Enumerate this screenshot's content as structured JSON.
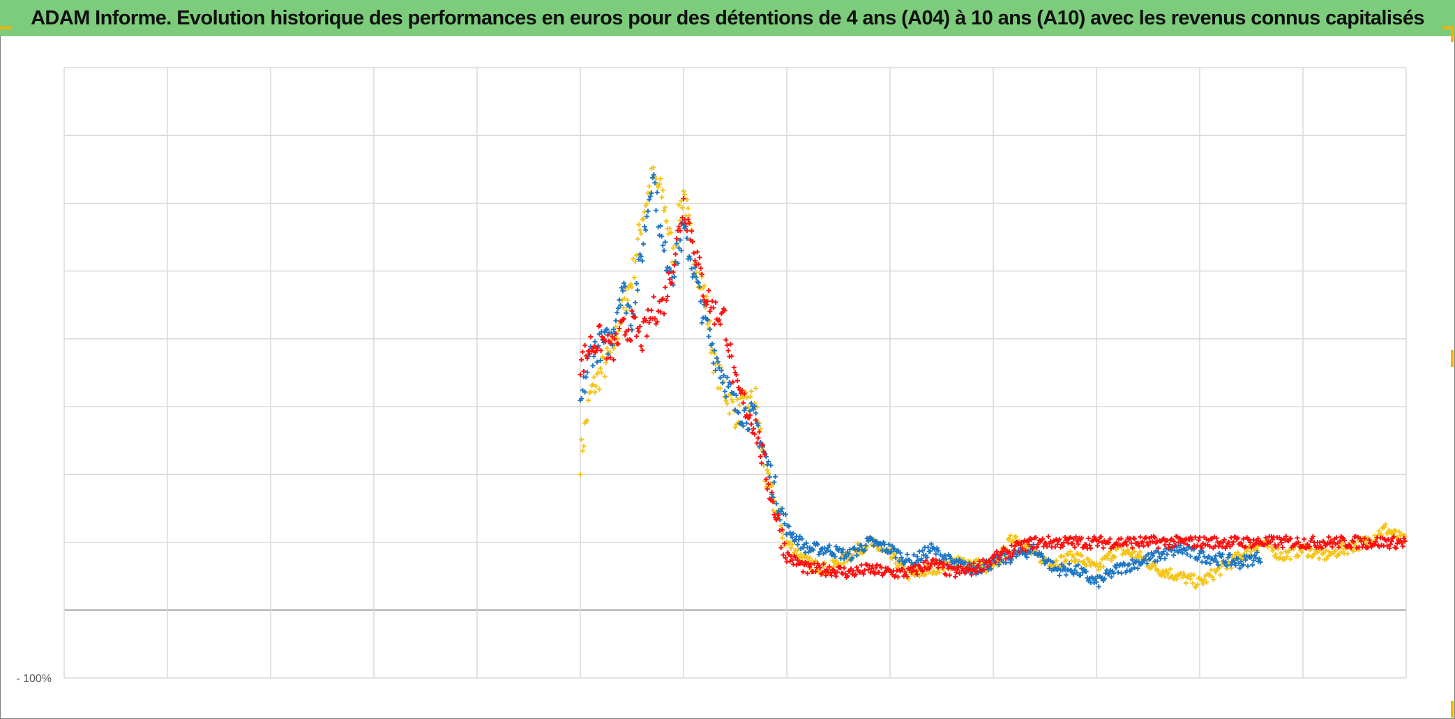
{
  "chart_data": {
    "type": "scatter",
    "title": "ADAM Informe. Evolution historique des performances en euros pour des détentions de 4 ans (A04) à 10 ans (A10) avec les revenus connus capitalisés",
    "y_tick_label_bottom": "- 100%",
    "xlabel": "",
    "ylabel": "",
    "grid": true,
    "legend": "none",
    "marker": "+",
    "x_range": [
      0,
      13
    ],
    "y_range": [
      -100,
      800
    ],
    "y_gridlines": [
      -100,
      0,
      100,
      200,
      300,
      400,
      500,
      600,
      700,
      800
    ],
    "baseline_y": 0,
    "series": [
      {
        "color": "#f5c518",
        "points": [
          [
            5.0,
            222
          ],
          [
            5.1,
            320
          ],
          [
            5.3,
            380
          ],
          [
            5.5,
            490
          ],
          [
            5.6,
            580
          ],
          [
            5.7,
            640
          ],
          [
            5.8,
            610
          ],
          [
            5.9,
            520
          ],
          [
            6.0,
            620
          ],
          [
            6.1,
            520
          ],
          [
            6.2,
            470
          ],
          [
            6.3,
            360
          ],
          [
            6.5,
            290
          ],
          [
            6.7,
            310
          ],
          [
            6.8,
            190
          ],
          [
            7.0,
            100
          ],
          [
            7.2,
            70
          ],
          [
            7.4,
            60
          ],
          [
            7.6,
            80
          ],
          [
            7.8,
            100
          ],
          [
            8.0,
            80
          ],
          [
            8.2,
            50
          ],
          [
            8.4,
            60
          ],
          [
            8.6,
            70
          ],
          [
            8.8,
            70
          ],
          [
            9.0,
            60
          ],
          [
            9.2,
            110
          ],
          [
            9.4,
            80
          ],
          [
            9.6,
            70
          ],
          [
            9.8,
            80
          ],
          [
            10.0,
            60
          ],
          [
            10.2,
            90
          ],
          [
            10.4,
            80
          ],
          [
            10.6,
            60
          ],
          [
            10.8,
            50
          ],
          [
            11.0,
            40
          ],
          [
            11.2,
            60
          ],
          [
            11.4,
            80
          ],
          [
            11.6,
            100
          ],
          [
            11.8,
            80
          ],
          [
            12.0,
            90
          ],
          [
            12.2,
            80
          ],
          [
            12.4,
            90
          ],
          [
            12.6,
            100
          ],
          [
            12.8,
            120
          ],
          [
            13.0,
            100
          ]
        ]
      },
      {
        "color": "#1f77c4",
        "points": [
          [
            5.0,
            300
          ],
          [
            5.1,
            380
          ],
          [
            5.3,
            400
          ],
          [
            5.4,
            480
          ],
          [
            5.5,
            430
          ],
          [
            5.6,
            530
          ],
          [
            5.7,
            650
          ],
          [
            5.8,
            530
          ],
          [
            5.9,
            500
          ],
          [
            6.0,
            560
          ],
          [
            6.1,
            500
          ],
          [
            6.2,
            430
          ],
          [
            6.3,
            380
          ],
          [
            6.4,
            340
          ],
          [
            6.5,
            300
          ],
          [
            6.6,
            290
          ],
          [
            6.7,
            280
          ],
          [
            6.8,
            220
          ],
          [
            7.0,
            120
          ],
          [
            7.2,
            90
          ],
          [
            7.4,
            90
          ],
          [
            7.6,
            80
          ],
          [
            7.8,
            100
          ],
          [
            8.0,
            90
          ],
          [
            8.2,
            70
          ],
          [
            8.4,
            90
          ],
          [
            8.6,
            70
          ],
          [
            8.8,
            60
          ],
          [
            9.0,
            70
          ],
          [
            9.2,
            80
          ],
          [
            9.4,
            90
          ],
          [
            9.6,
            60
          ],
          [
            9.8,
            60
          ],
          [
            10.0,
            40
          ],
          [
            10.2,
            60
          ],
          [
            10.4,
            70
          ],
          [
            10.6,
            80
          ],
          [
            10.8,
            90
          ],
          [
            11.0,
            80
          ],
          [
            11.2,
            75
          ],
          [
            11.4,
            70
          ],
          [
            11.6,
            80
          ]
        ]
      },
      {
        "color": "#ff0f0f",
        "points": [
          [
            5.0,
            360
          ],
          [
            5.1,
            390
          ],
          [
            5.2,
            400
          ],
          [
            5.3,
            380
          ],
          [
            5.4,
            410
          ],
          [
            5.5,
            420
          ],
          [
            5.6,
            400
          ],
          [
            5.7,
            440
          ],
          [
            5.8,
            450
          ],
          [
            5.9,
            510
          ],
          [
            6.0,
            600
          ],
          [
            6.1,
            540
          ],
          [
            6.2,
            470
          ],
          [
            6.3,
            440
          ],
          [
            6.4,
            430
          ],
          [
            6.5,
            330
          ],
          [
            6.6,
            300
          ],
          [
            6.7,
            270
          ],
          [
            6.8,
            200
          ],
          [
            7.0,
            80
          ],
          [
            7.2,
            60
          ],
          [
            7.4,
            60
          ],
          [
            7.6,
            55
          ],
          [
            7.8,
            60
          ],
          [
            8.0,
            55
          ],
          [
            8.2,
            55
          ],
          [
            8.4,
            70
          ],
          [
            8.6,
            55
          ],
          [
            8.8,
            60
          ],
          [
            9.0,
            75
          ],
          [
            9.2,
            90
          ],
          [
            9.4,
            100
          ],
          [
            9.6,
            100
          ],
          [
            9.8,
            100
          ],
          [
            10.0,
            100
          ],
          [
            10.5,
            100
          ],
          [
            11.0,
            100
          ],
          [
            11.5,
            100
          ],
          [
            12.0,
            100
          ],
          [
            12.5,
            100
          ],
          [
            13.0,
            100
          ]
        ]
      }
    ]
  }
}
